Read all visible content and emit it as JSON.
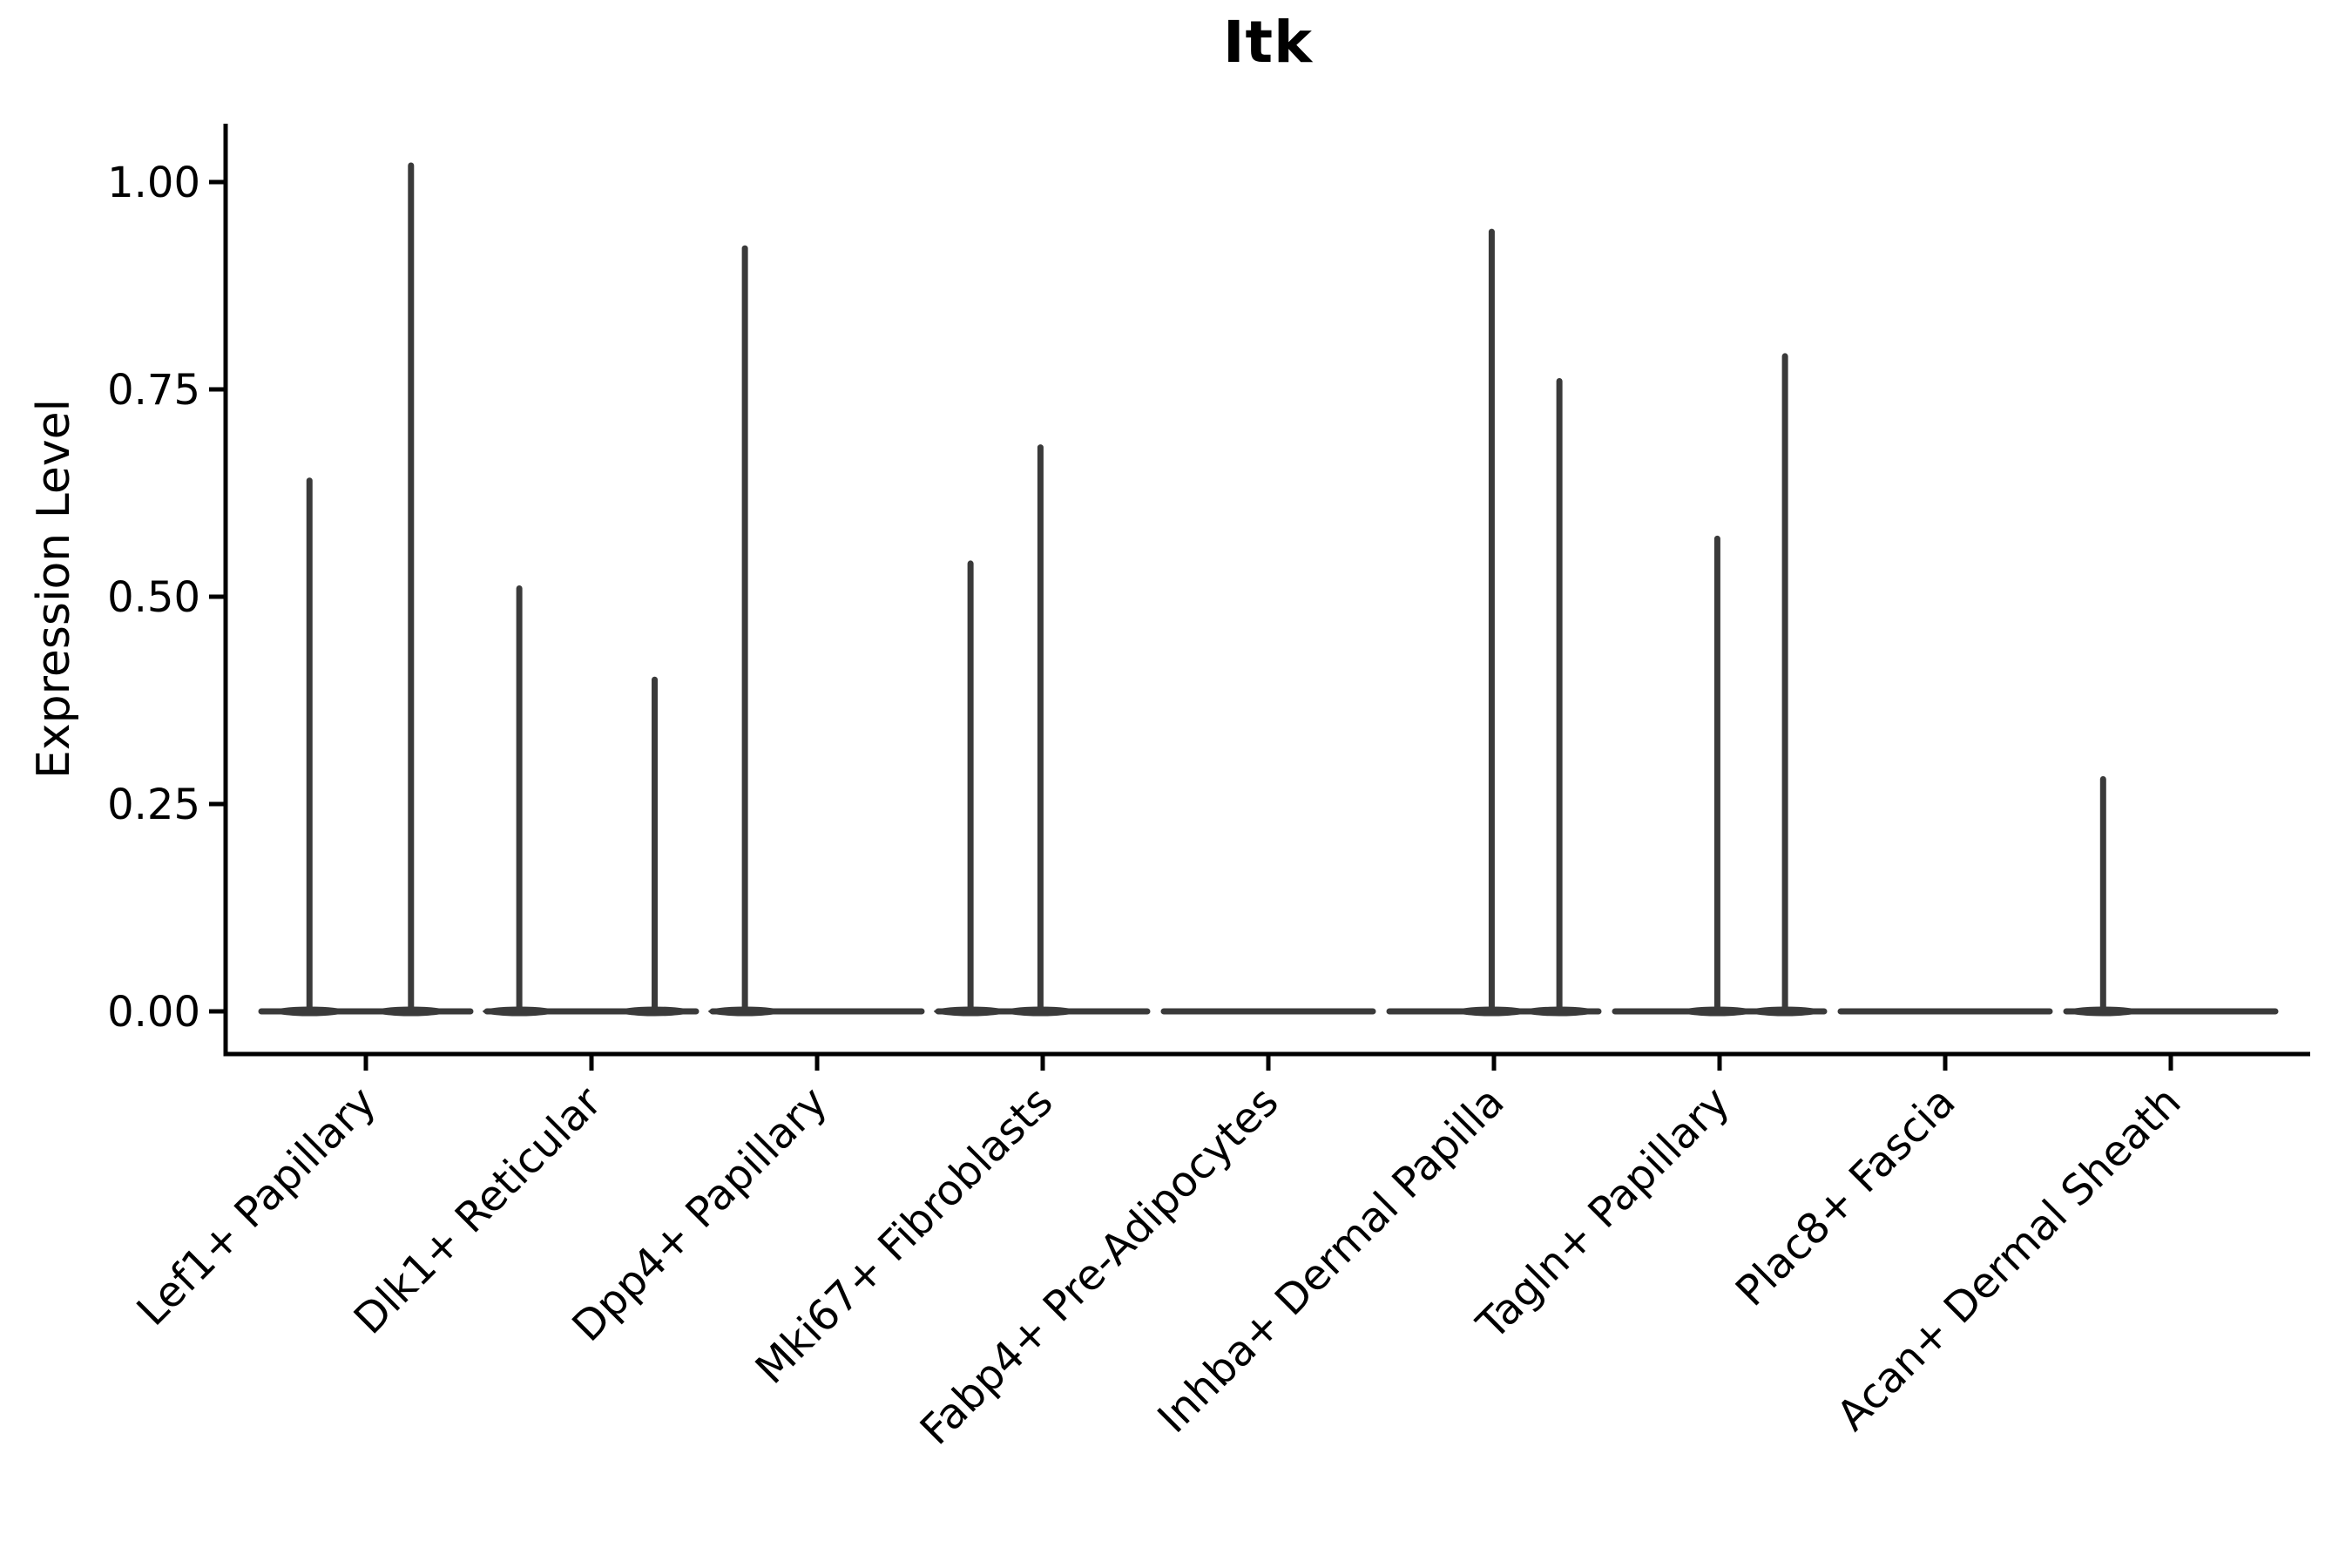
{
  "title": "Itk",
  "y_axis": {
    "label": "Expression Level",
    "tick_labels": [
      "0.00",
      "0.25",
      "0.50",
      "0.75",
      "1.00"
    ]
  },
  "chart_data": {
    "type": "violin",
    "title": "Itk",
    "xlabel": "",
    "ylabel": "Expression Level",
    "ylim": [
      0,
      1.07
    ],
    "yticks": [
      0,
      0.25,
      0.5,
      0.75,
      1.0
    ],
    "ytick_labels": [
      "0.00",
      "0.25",
      "0.50",
      "0.75",
      "1.00"
    ],
    "grid": false,
    "legend_position": "none",
    "violin_color": "#3A3A3A",
    "axis_color": "#000000",
    "categories": [
      "Lef1+ Papillary",
      "Dlk1+ Reticular",
      "Dpp4+ Papillary",
      "Mki67+ Fibroblasts",
      "Fabp4+ Pre-Adipocytes",
      "Inhba+ Dermal Papilla",
      "Tagln+ Papillary",
      "Plac8+ Fascia",
      "Acan+ Dermal Sheath"
    ],
    "series": [
      {
        "name": "Lef1+ Papillary",
        "baseline_value": 0,
        "spikes": [
          {
            "offset": -0.25,
            "value": 0.64
          },
          {
            "offset": 0.2,
            "value": 1.02
          }
        ]
      },
      {
        "name": "Dlk1+ Reticular",
        "baseline_value": 0,
        "spikes": [
          {
            "offset": -0.32,
            "value": 0.51
          },
          {
            "offset": 0.28,
            "value": 0.4
          }
        ]
      },
      {
        "name": "Dpp4+ Papillary",
        "baseline_value": 0,
        "spikes": [
          {
            "offset": -0.32,
            "value": 0.92
          }
        ]
      },
      {
        "name": "Mki67+ Fibroblasts",
        "baseline_value": 0,
        "spikes": [
          {
            "offset": -0.32,
            "value": 0.54
          },
          {
            "offset": -0.01,
            "value": 0.68
          }
        ]
      },
      {
        "name": "Fabp4+ Pre-Adipocytes",
        "baseline_value": 0,
        "spikes": []
      },
      {
        "name": "Inhba+ Dermal Papilla",
        "baseline_value": 0,
        "spikes": [
          {
            "offset": -0.01,
            "value": 0.94
          },
          {
            "offset": 0.29,
            "value": 0.76
          }
        ]
      },
      {
        "name": "Tagln+ Papillary",
        "baseline_value": 0,
        "spikes": [
          {
            "offset": -0.01,
            "value": 0.57
          },
          {
            "offset": 0.29,
            "value": 0.79
          }
        ]
      },
      {
        "name": "Plac8+ Fascia",
        "baseline_value": 0,
        "spikes": []
      },
      {
        "name": "Acan+ Dermal Sheath",
        "baseline_value": 0,
        "spikes": [
          {
            "offset": -0.3,
            "value": 0.28
          }
        ]
      }
    ]
  }
}
